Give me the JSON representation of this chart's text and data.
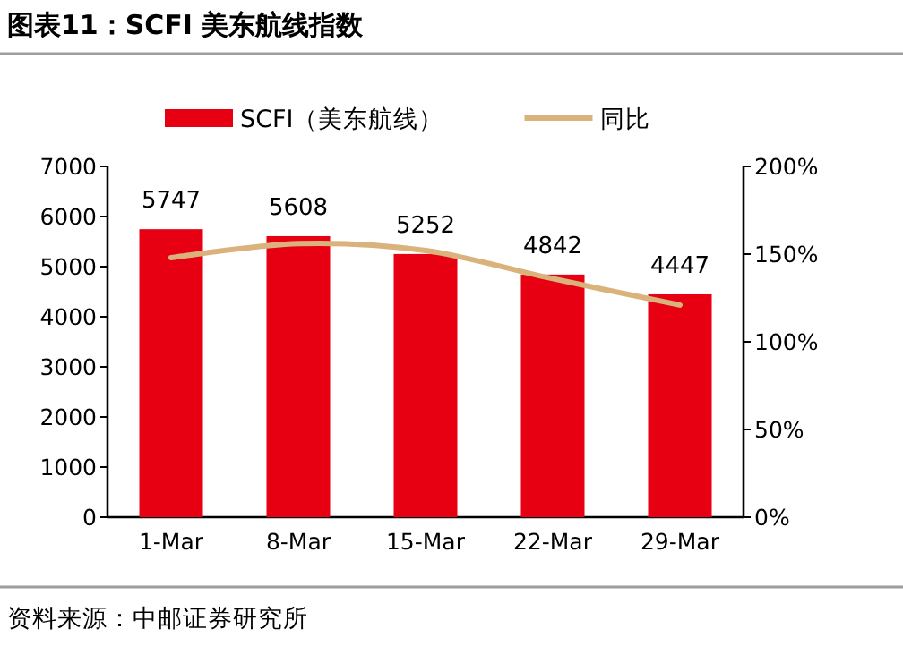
{
  "chart_data": {
    "type": "bar",
    "title": "图表11：SCFI 美东航线指数",
    "categories": [
      "1-Mar",
      "8-Mar",
      "15-Mar",
      "22-Mar",
      "29-Mar"
    ],
    "series": [
      {
        "name": "SCFI（美东航线）",
        "color": "#e60012",
        "values": [
          5747,
          5608,
          5252,
          4842,
          4447
        ],
        "value_labels": [
          "5747",
          "5608",
          "5252",
          "4842",
          "4447"
        ]
      },
      {
        "name": "同比",
        "type": "line",
        "axis": "y2",
        "color": "#d9b27c",
        "values": [
          148,
          156,
          152,
          136,
          121
        ]
      }
    ],
    "ylim": [
      0,
      7000
    ],
    "yticks": [
      0,
      1000,
      2000,
      3000,
      4000,
      5000,
      6000,
      7000
    ],
    "y2lim": [
      0,
      200
    ],
    "y2ticks": [
      {
        "value": 0,
        "label": "0%"
      },
      {
        "value": 50,
        "label": "50%"
      },
      {
        "value": 100,
        "label": "100%"
      },
      {
        "value": 150,
        "label": "150%"
      },
      {
        "value": 200,
        "label": "200%"
      }
    ],
    "legend": "top",
    "grid": false,
    "annotations": [
      "资料来源：中邮证券研究所"
    ]
  }
}
